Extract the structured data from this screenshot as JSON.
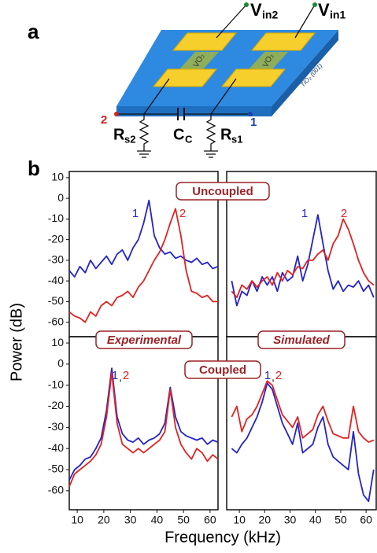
{
  "figure": {
    "panel_a": "a",
    "panel_b": "b",
    "schematic": {
      "v_in2": {
        "main": "V",
        "sub": "in2"
      },
      "v_in1": {
        "main": "V",
        "sub": "in1"
      },
      "vo2_left": "VO₂",
      "vo2_right": "VO₂",
      "substrate": "TiO₂ (001)",
      "node_2": "2",
      "node_1": "1",
      "r_s2": {
        "main": "R",
        "sub": "s2"
      },
      "c_c": {
        "main": "C",
        "sub": "C"
      },
      "r_s1": {
        "main": "R",
        "sub": "s1"
      }
    },
    "y_label": "Power (dB)",
    "x_label": "Frequency (kHz)",
    "annotations": {
      "uncoupled": "Uncoupled",
      "coupled": "Coupled",
      "experimental": "Experimental",
      "simulated": "Simulated"
    }
  },
  "chart_data": [
    {
      "type": "line",
      "xlim": [
        7,
        63
      ],
      "ylim": [
        -67,
        13
      ],
      "yticks": [
        10,
        0,
        -10,
        -20,
        -30,
        -40,
        -50,
        -60
      ],
      "x": [
        7,
        9,
        11,
        13,
        15,
        17,
        19,
        21,
        23,
        25,
        27,
        29,
        31,
        33,
        35,
        37,
        39,
        41,
        43,
        45,
        47,
        49,
        51,
        53,
        55,
        57,
        59,
        61,
        63
      ],
      "series": [
        {
          "name": "1",
          "color": "#2323c8",
          "values": [
            -35,
            -38,
            -33,
            -36,
            -30,
            -34,
            -31,
            -28,
            -32,
            -27,
            -25,
            -30,
            -24,
            -20,
            -12,
            -1,
            -18,
            -24,
            -27,
            -26,
            -29,
            -28,
            -30,
            -31,
            -29,
            -32,
            -31,
            -34,
            -33
          ]
        },
        {
          "name": "2",
          "color": "#e02222",
          "values": [
            -55,
            -57,
            -58,
            -60,
            -55,
            -57,
            -52,
            -50,
            -52,
            -48,
            -47,
            -45,
            -48,
            -43,
            -40,
            -35,
            -30,
            -26,
            -20,
            -12,
            -5,
            -18,
            -35,
            -45,
            -46,
            -48,
            -47,
            -50,
            -50
          ]
        }
      ]
    },
    {
      "type": "line",
      "xlim": [
        5,
        64
      ],
      "ylim": [
        -67,
        13
      ],
      "x": [
        7,
        9,
        11,
        13,
        15,
        17,
        19,
        21,
        23,
        25,
        27,
        29,
        31,
        33,
        35,
        37,
        39,
        41,
        43,
        45,
        47,
        49,
        51,
        53,
        55,
        57,
        59,
        61,
        63
      ],
      "series": [
        {
          "name": "1",
          "color": "#2323c8",
          "values": [
            -40,
            -52,
            -45,
            -47,
            -40,
            -45,
            -38,
            -42,
            -38,
            -45,
            -36,
            -40,
            -38,
            -28,
            -40,
            -32,
            -20,
            -8,
            -22,
            -35,
            -44,
            -40,
            -45,
            -42,
            -43,
            -40,
            -45,
            -42,
            -48
          ]
        },
        {
          "name": "2",
          "color": "#e02222",
          "values": [
            -45,
            -48,
            -42,
            -44,
            -40,
            -43,
            -40,
            -38,
            -42,
            -36,
            -40,
            -35,
            -37,
            -33,
            -34,
            -30,
            -30,
            -27,
            -25,
            -30,
            -22,
            -18,
            -10,
            -15,
            -22,
            -30,
            -36,
            -40,
            -42
          ]
        }
      ]
    },
    {
      "type": "line",
      "xlim": [
        7,
        63
      ],
      "ylim": [
        -69,
        13
      ],
      "yticks": [
        10,
        0,
        -10,
        -20,
        -30,
        -40,
        -50,
        -60
      ],
      "xticks": [
        10,
        20,
        30,
        40,
        50,
        60
      ],
      "label_separator": ",",
      "x": [
        7,
        9,
        11,
        13,
        15,
        17,
        19,
        21,
        23,
        25,
        27,
        29,
        31,
        33,
        35,
        37,
        39,
        41,
        43,
        45,
        47,
        49,
        51,
        53,
        55,
        57,
        59,
        61,
        63
      ],
      "series": [
        {
          "name": "1",
          "color": "#2323c8",
          "values": [
            -55,
            -50,
            -48,
            -45,
            -44,
            -40,
            -35,
            -22,
            -2,
            -25,
            -33,
            -36,
            -37,
            -35,
            -38,
            -36,
            -35,
            -33,
            -28,
            -11,
            -25,
            -32,
            -34,
            -35,
            -36,
            -35,
            -38,
            -36,
            -37
          ]
        },
        {
          "name": "2",
          "color": "#e02222",
          "values": [
            -58,
            -52,
            -50,
            -48,
            -46,
            -43,
            -38,
            -25,
            -4,
            -28,
            -38,
            -40,
            -42,
            -40,
            -42,
            -40,
            -38,
            -36,
            -32,
            -12,
            -30,
            -38,
            -42,
            -45,
            -40,
            -42,
            -46,
            -43,
            -45
          ]
        }
      ]
    },
    {
      "type": "line",
      "xlim": [
        5,
        64
      ],
      "ylim": [
        -69,
        13
      ],
      "xticks": [
        10,
        20,
        30,
        40,
        50,
        60
      ],
      "label_separator": ",",
      "x": [
        7,
        9,
        11,
        13,
        15,
        17,
        19,
        21,
        23,
        25,
        27,
        29,
        31,
        33,
        35,
        37,
        39,
        41,
        43,
        45,
        47,
        49,
        51,
        53,
        55,
        57,
        59,
        61,
        63
      ],
      "series": [
        {
          "name": "1",
          "color": "#2323c8",
          "values": [
            -40,
            -42,
            -38,
            -35,
            -30,
            -25,
            -18,
            -9,
            -12,
            -20,
            -28,
            -33,
            -38,
            -28,
            -42,
            -40,
            -38,
            -30,
            -25,
            -38,
            -44,
            -46,
            -48,
            -50,
            -32,
            -52,
            -62,
            -65,
            -50
          ]
        },
        {
          "name": "2",
          "color": "#e02222",
          "values": [
            -25,
            -20,
            -32,
            -26,
            -24,
            -20,
            -14,
            -8,
            -10,
            -17,
            -24,
            -27,
            -30,
            -25,
            -35,
            -33,
            -31,
            -24,
            -20,
            -27,
            -33,
            -34,
            -35,
            -35,
            -20,
            -32,
            -35,
            -37,
            -36
          ]
        }
      ]
    }
  ]
}
